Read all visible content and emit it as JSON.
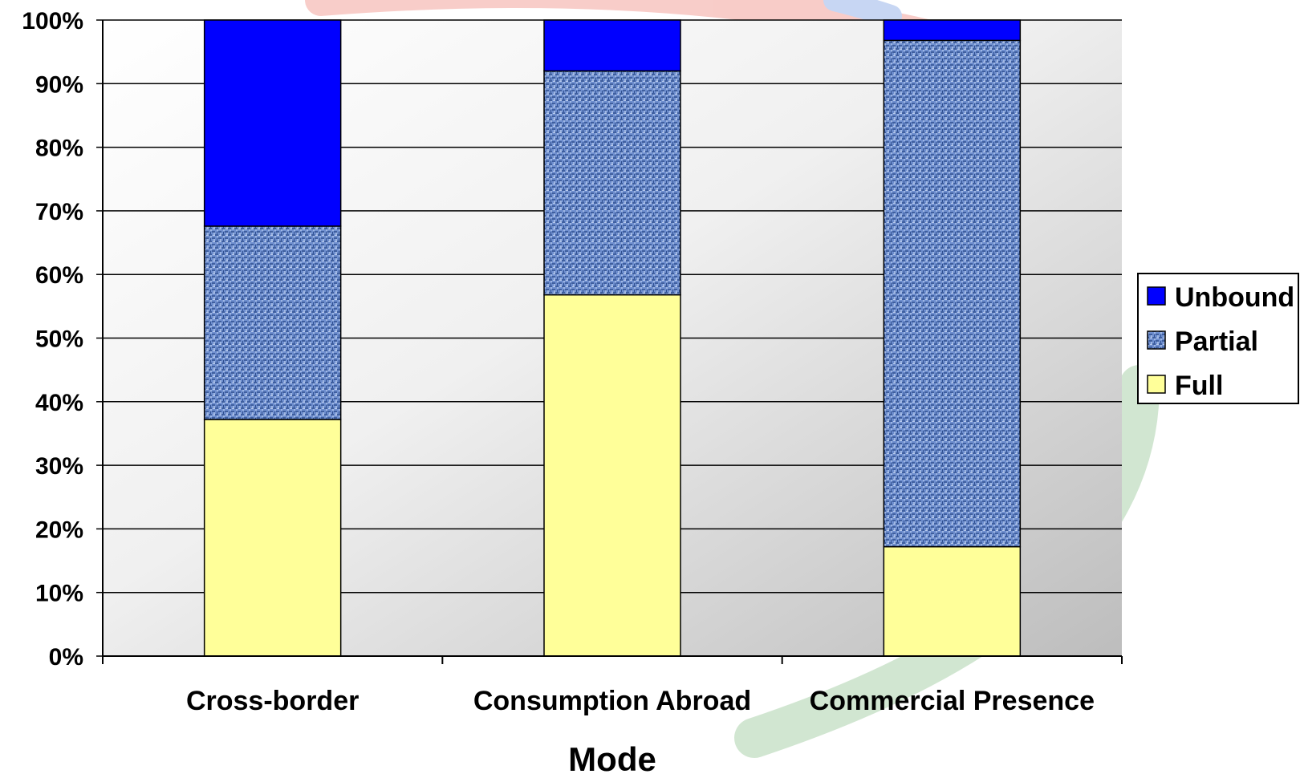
{
  "chart_data": {
    "type": "bar",
    "stacked": true,
    "percent": true,
    "categories": [
      "Cross-border",
      "Consumption Abroad",
      "Commercial Presence"
    ],
    "series": [
      {
        "name": "Full",
        "values": [
          37.2,
          56.8,
          17.2
        ],
        "color": "#ffff99",
        "pattern": "solid"
      },
      {
        "name": "Partial",
        "values": [
          30.4,
          35.2,
          79.6
        ],
        "color": "#5b7fc4",
        "pattern": "textured"
      },
      {
        "name": "Unbound",
        "values": [
          32.4,
          8.0,
          3.2
        ],
        "color": "#0000ff",
        "pattern": "solid"
      }
    ],
    "y_ticks": [
      "0%",
      "10%",
      "20%",
      "30%",
      "40%",
      "50%",
      "60%",
      "70%",
      "80%",
      "90%",
      "100%"
    ],
    "ylim": [
      0,
      100
    ],
    "xlabel": "Mode",
    "ylabel": "",
    "grid": true,
    "legend_position": "right",
    "legend_order": [
      "Unbound",
      "Partial",
      "Full"
    ]
  }
}
